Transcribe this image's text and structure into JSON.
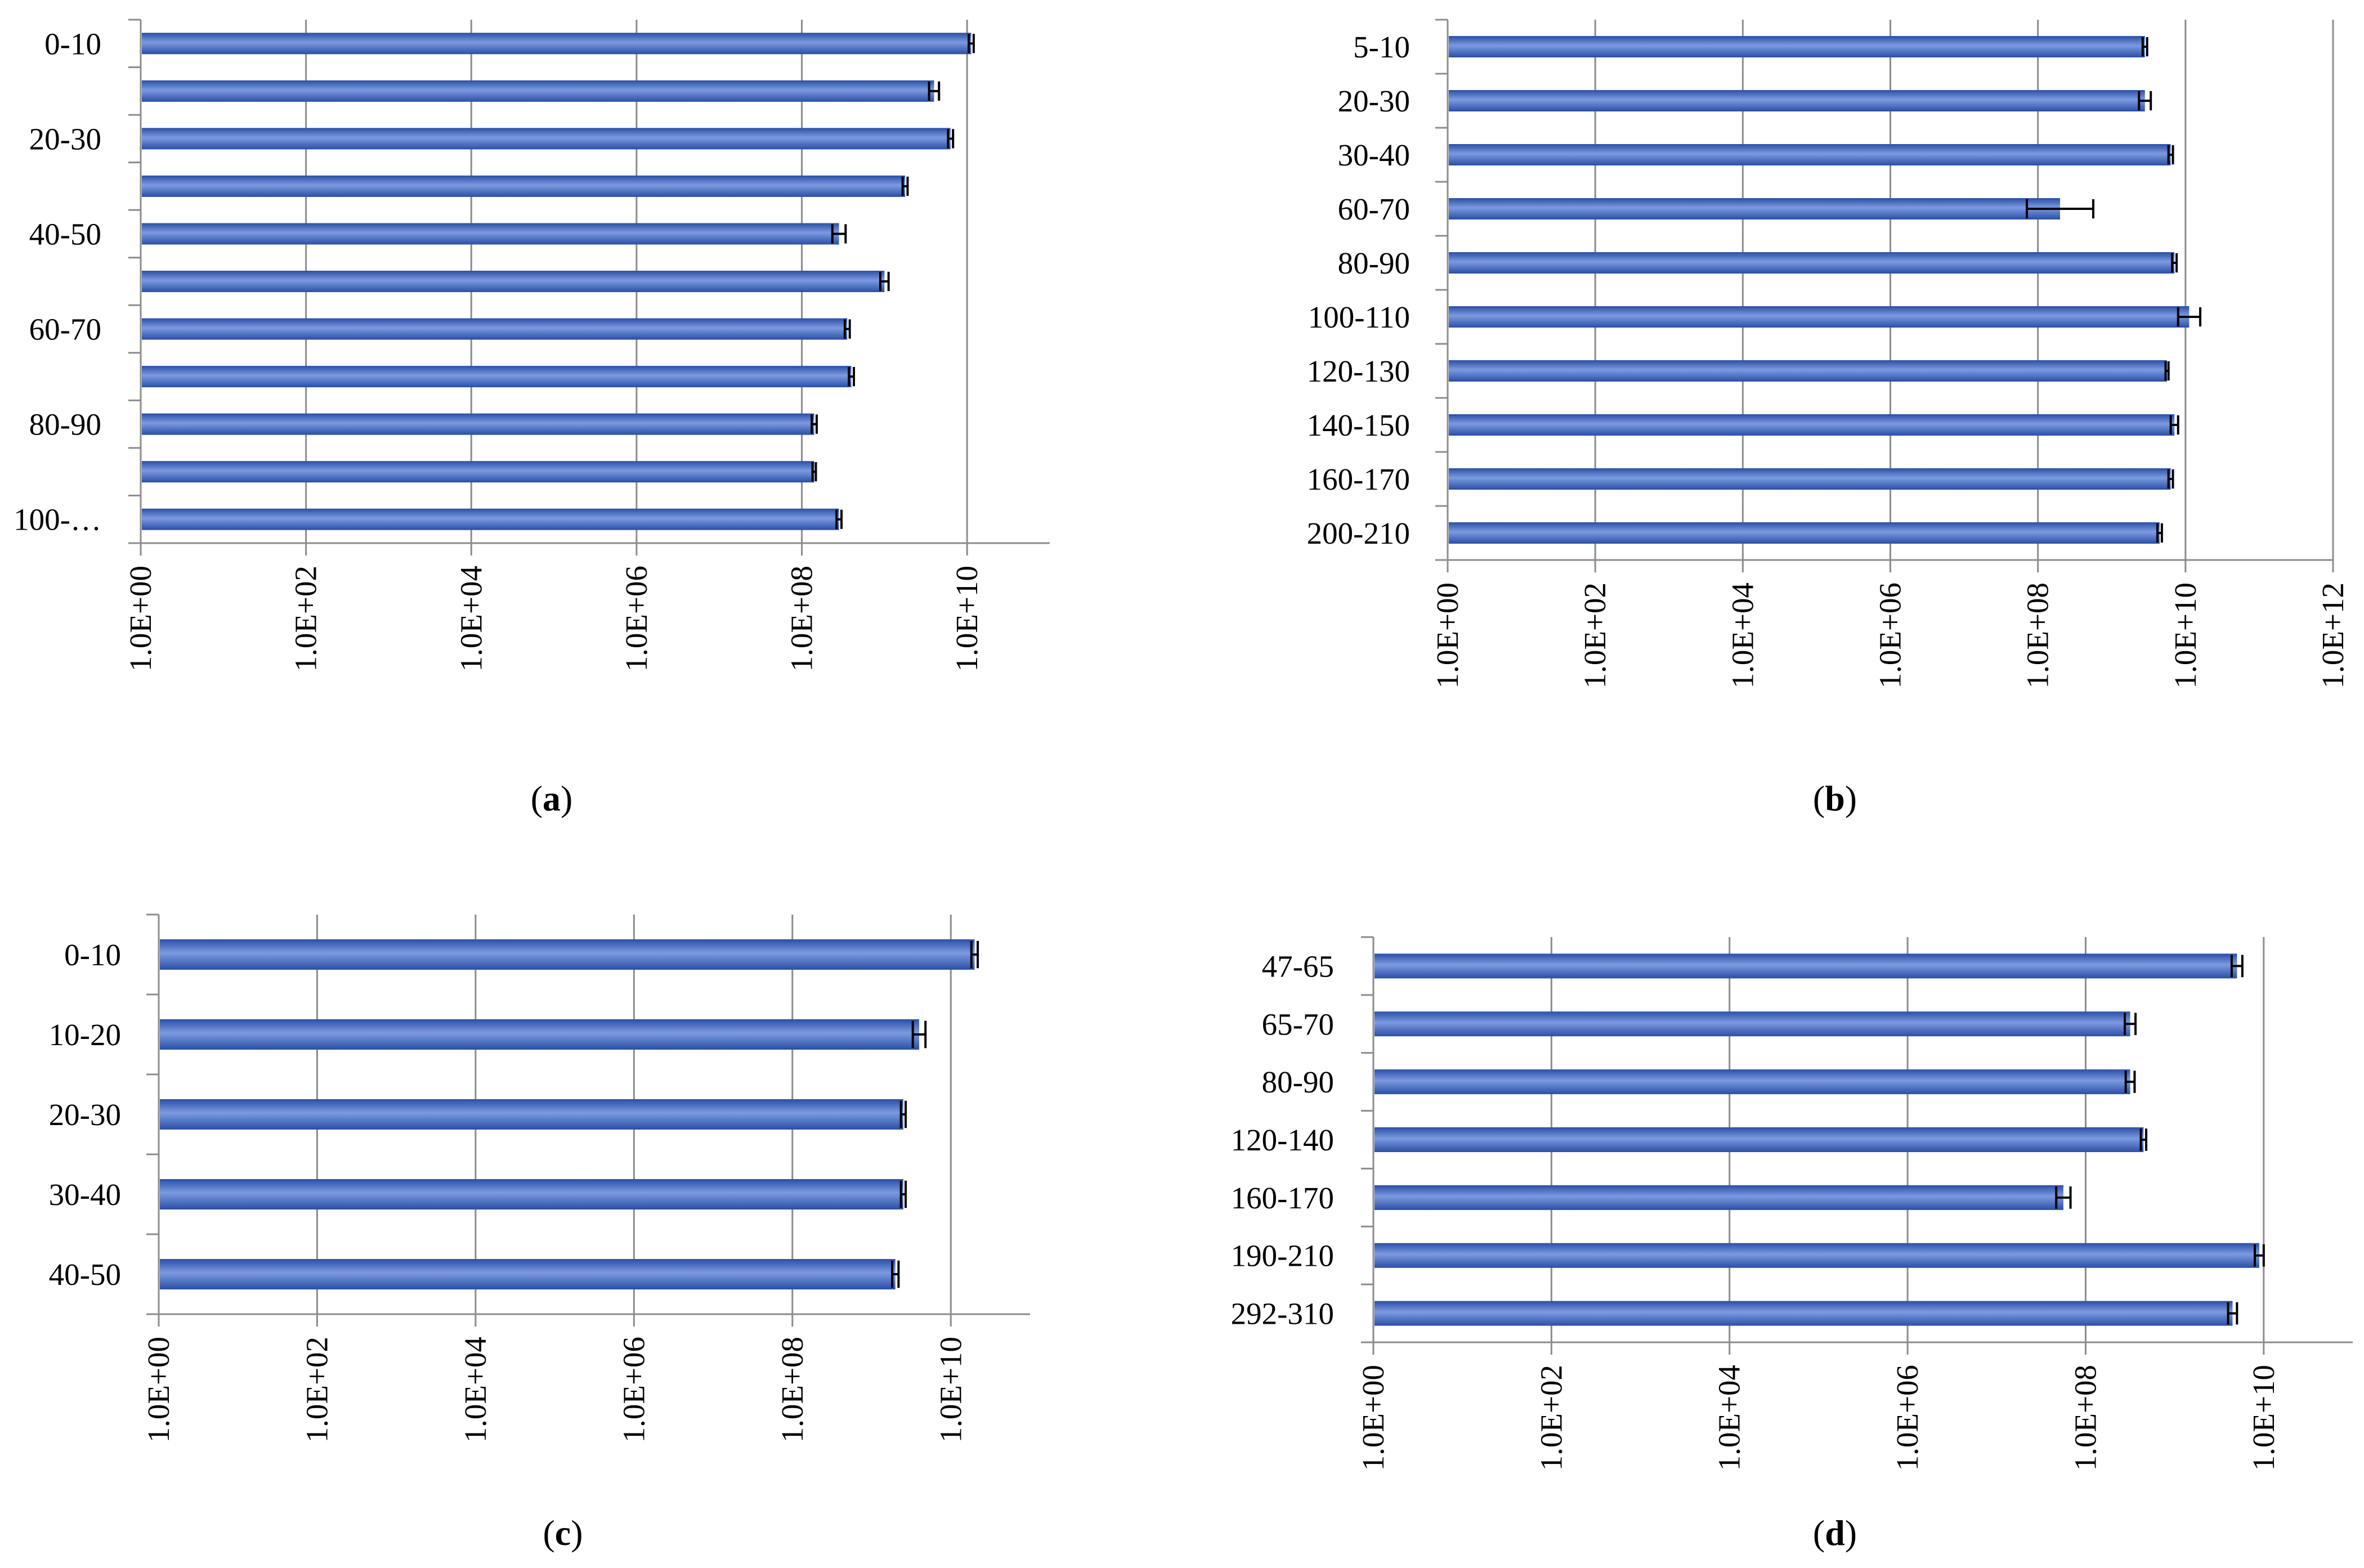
{
  "figure": {
    "bar_color": "#3B67C8",
    "bar_highlight": "#7C9AE0",
    "bar_shadow": "#2A4FA6",
    "grid_color": "#8C8C8C",
    "axis_color": "#8C8C8C",
    "errorbar_color": "#000000"
  },
  "chart_data": [
    {
      "id": "a",
      "type": "bar",
      "orientation": "horizontal",
      "x_scale": "log10",
      "panel_label": {
        "open": "(",
        "letter": "a",
        "close": ")"
      },
      "xlim_exp": [
        0,
        11
      ],
      "tick_exps": [
        0,
        2,
        4,
        6,
        8,
        10
      ],
      "tick_labels": [
        "1.0E+00",
        "1.0E+02",
        "1.0E+04",
        "1.0E+06",
        "1.0E+08",
        "1.0E+10"
      ],
      "categories": [
        "0-10",
        "",
        "20-30",
        "",
        "40-50",
        "",
        "60-70",
        "",
        "80-90",
        "",
        "100-…"
      ],
      "values_exp": [
        10.05,
        9.6,
        9.8,
        9.25,
        8.45,
        9.0,
        8.55,
        8.6,
        8.15,
        8.15,
        8.45
      ],
      "error_exp": [
        0.03,
        0.06,
        0.03,
        0.03,
        0.08,
        0.05,
        0.03,
        0.03,
        0.03,
        0.02,
        0.03
      ]
    },
    {
      "id": "b",
      "type": "bar",
      "orientation": "horizontal",
      "x_scale": "log10",
      "panel_label": {
        "open": "(",
        "letter": "b",
        "close": ")"
      },
      "xlim_exp": [
        0,
        12
      ],
      "tick_exps": [
        0,
        2,
        4,
        6,
        8,
        10,
        12
      ],
      "tick_labels": [
        "1.0E+00",
        "1.0E+02",
        "1.0E+04",
        "1.0E+06",
        "1.0E+08",
        "1.0E+10",
        "1.0E+12"
      ],
      "categories": [
        "5-10",
        "20-30",
        "30-40",
        "60-70",
        "80-90",
        "100-110",
        "120-130",
        "140-150",
        "160-170",
        "200-210"
      ],
      "values_exp": [
        9.45,
        9.45,
        9.8,
        8.3,
        9.85,
        10.05,
        9.75,
        9.85,
        9.8,
        9.65
      ],
      "error_exp": [
        0.03,
        0.08,
        0.03,
        0.45,
        0.03,
        0.15,
        0.02,
        0.05,
        0.03,
        0.03
      ]
    },
    {
      "id": "c",
      "type": "bar",
      "orientation": "horizontal",
      "x_scale": "log10",
      "panel_label": {
        "open": "(",
        "letter": "c",
        "close": ")"
      },
      "xlim_exp": [
        0,
        11
      ],
      "tick_exps": [
        0,
        2,
        4,
        6,
        8,
        10
      ],
      "tick_labels": [
        "1.0E+00",
        "1.0E+02",
        "1.0E+04",
        "1.0E+06",
        "1.0E+08",
        "1.0E+10"
      ],
      "categories": [
        "0-10",
        "10-20",
        "20-30",
        "30-40",
        "40-50"
      ],
      "values_exp": [
        10.3,
        9.6,
        9.4,
        9.4,
        9.3
      ],
      "error_exp": [
        0.04,
        0.08,
        0.03,
        0.03,
        0.04
      ]
    },
    {
      "id": "d",
      "type": "bar",
      "orientation": "horizontal",
      "x_scale": "log10",
      "panel_label": {
        "open": "(",
        "letter": "d",
        "close": ")"
      },
      "xlim_exp": [
        0,
        11
      ],
      "tick_exps": [
        0,
        2,
        4,
        6,
        8,
        10
      ],
      "tick_labels": [
        "1.0E+00",
        "1.0E+02",
        "1.0E+04",
        "1.0E+06",
        "1.0E+08",
        "1.0E+10"
      ],
      "categories": [
        "47-65",
        "65-70",
        "80-90",
        "120-140",
        "160-170",
        "190-210",
        "292-310"
      ],
      "values_exp": [
        9.7,
        8.5,
        8.5,
        8.65,
        7.75,
        9.95,
        9.65
      ],
      "error_exp": [
        0.06,
        0.06,
        0.05,
        0.03,
        0.08,
        0.05,
        0.05
      ]
    }
  ]
}
